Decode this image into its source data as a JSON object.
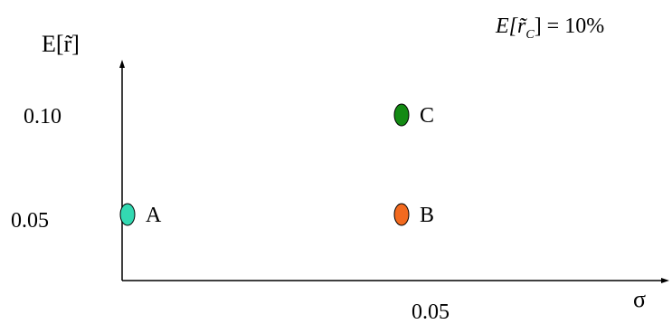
{
  "chart_data": {
    "type": "scatter",
    "title": "",
    "ylabel": "E[r̃]",
    "xlabel": "σ",
    "xlim": [
      0,
      0.1
    ],
    "ylim": [
      0,
      0.15
    ],
    "x_ticks": [
      {
        "value": 0.05,
        "label": "0.05"
      }
    ],
    "y_ticks": [
      {
        "value": 0.1,
        "label": "0.10"
      },
      {
        "value": 0.05,
        "label": "0.05"
      }
    ],
    "points": [
      {
        "name": "A",
        "x": 0.0,
        "y": 0.05,
        "color": "#33d9b2"
      },
      {
        "name": "B",
        "x": 0.05,
        "y": 0.05,
        "color": "#f26a1f"
      },
      {
        "name": "C",
        "x": 0.05,
        "y": 0.1,
        "color": "#138a13"
      }
    ],
    "annotation": {
      "prefix": "E[",
      "var": "r̃",
      "sub": "C",
      "suffix": "] = 10%"
    }
  }
}
